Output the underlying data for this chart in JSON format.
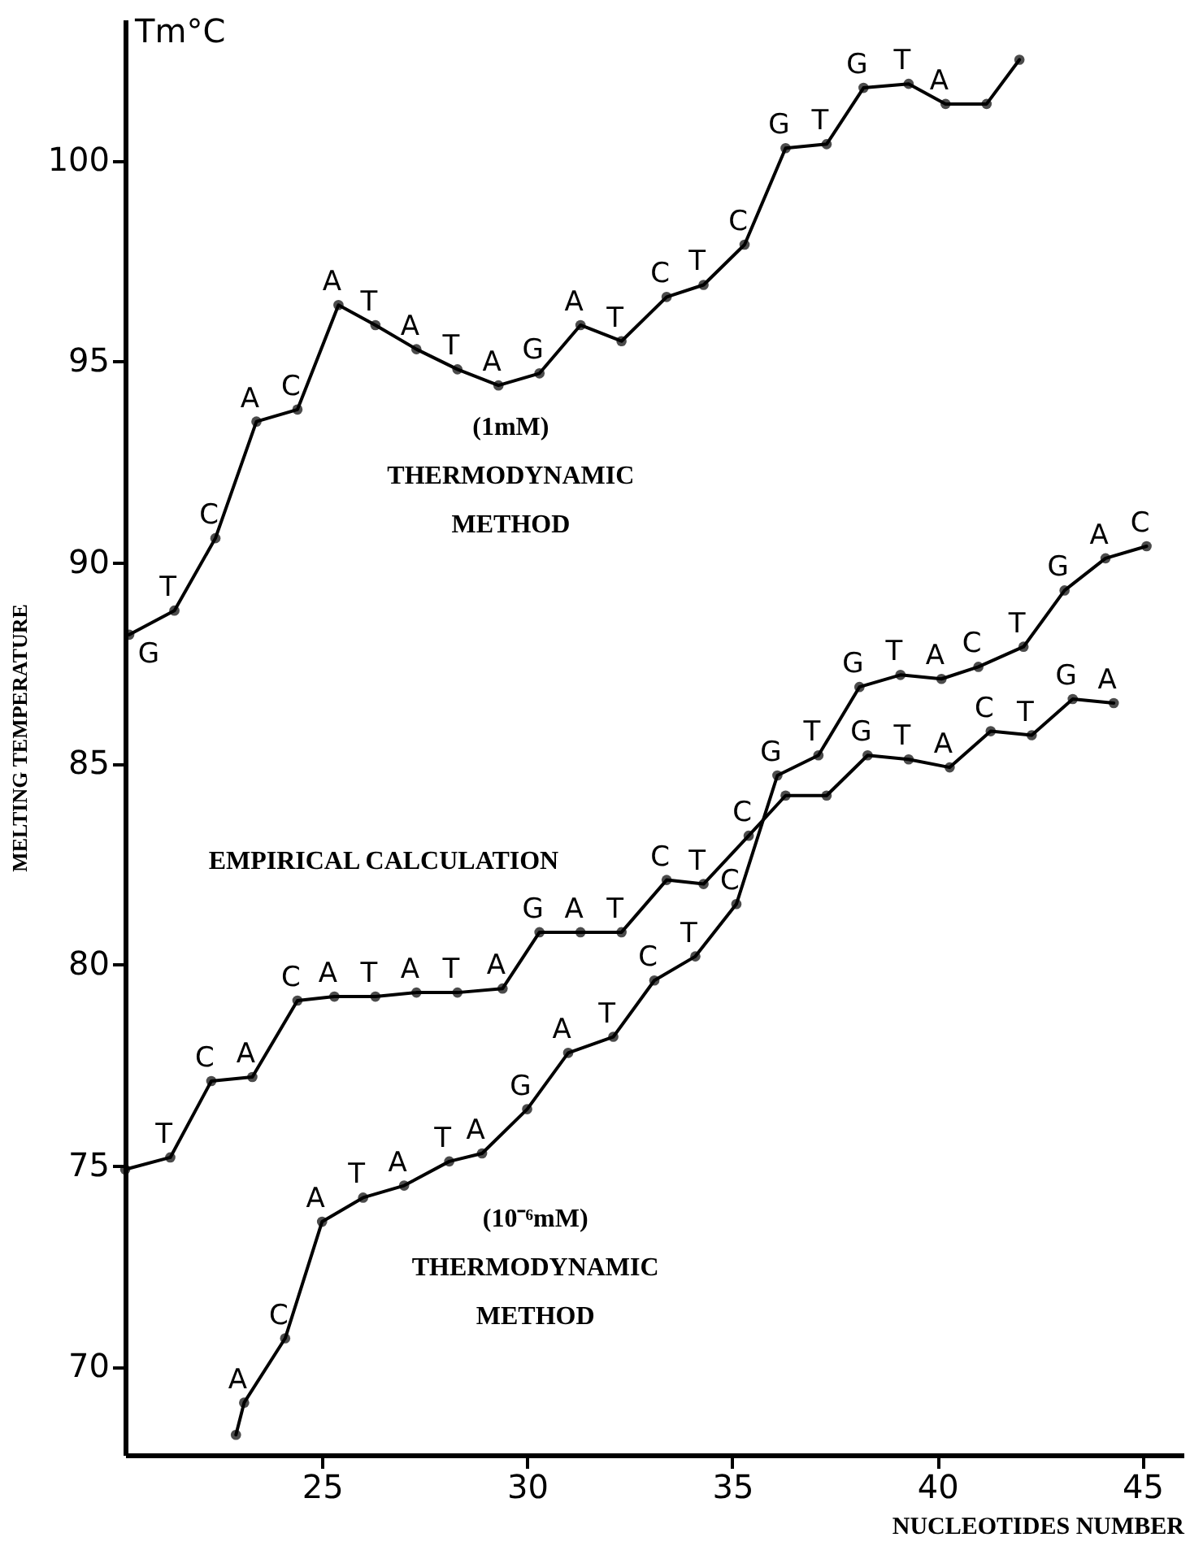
{
  "chart_data": {
    "type": "line",
    "xlabel": "NUCLEOTIDES NUMBER",
    "ylabel": "MELTING TEMPERATURE",
    "annotations": [
      "Tm°C"
    ],
    "xlim": [
      20.2,
      46
    ],
    "ylim": [
      67.8,
      103.5
    ],
    "xticks": [
      25,
      30,
      35,
      40,
      45
    ],
    "yticks": [
      70,
      75,
      80,
      85,
      90,
      95,
      100
    ],
    "grid": false,
    "marker": "circle",
    "line_style": "solid",
    "series": [
      {
        "name": "(1mM)\nTHERMODYNAMIC\nMETHOD",
        "color": "#000000",
        "x": [
          20.3,
          21.4,
          22.4,
          23.4,
          24.4,
          25.4,
          26.3,
          27.3,
          28.3,
          29.3,
          30.3,
          31.3,
          32.3,
          33.4,
          34.3,
          35.3,
          36.3,
          37.3,
          38.2,
          39.3,
          40.2,
          41.2,
          42.0
        ],
        "values": [
          88.2,
          88.8,
          90.6,
          93.5,
          93.8,
          96.4,
          95.9,
          95.3,
          94.8,
          94.4,
          94.7,
          95.9,
          95.5,
          96.6,
          96.9,
          97.9,
          100.3,
          100.4,
          101.8,
          101.9,
          101.4,
          101.4,
          102.5
        ],
        "value_labels": [
          "G",
          "T",
          "C",
          "A",
          "C",
          "A",
          "T",
          "A",
          "T",
          "A",
          "G",
          "A",
          "T",
          "C",
          "T",
          "C",
          "G",
          "T",
          "G",
          "T",
          "A",
          null,
          null
        ]
      },
      {
        "name": "EMPIRICAL CALCULATION",
        "color": "#000000",
        "x": [
          20.2,
          21.3,
          22.3,
          23.3,
          24.4,
          25.3,
          26.3,
          27.3,
          28.3,
          29.4,
          30.3,
          31.3,
          32.3,
          33.4,
          34.3,
          35.4,
          36.3,
          37.3,
          38.3,
          39.3,
          40.3,
          41.3,
          42.3,
          43.3,
          44.3
        ],
        "values": [
          74.9,
          75.2,
          77.1,
          77.2,
          79.1,
          79.2,
          79.2,
          79.3,
          79.3,
          79.4,
          80.8,
          80.8,
          80.8,
          82.1,
          82.0,
          83.2,
          84.2,
          84.2,
          85.2,
          85.1,
          84.9,
          85.8,
          85.7,
          86.6,
          86.5
        ],
        "value_labels": [
          null,
          "T",
          "C",
          "A",
          "C",
          "A",
          "T",
          "A",
          "T",
          "A",
          "G",
          "A",
          "T",
          "C",
          "T",
          "C",
          null,
          null,
          "G",
          "T",
          "A",
          "C",
          "T",
          "G",
          "A"
        ]
      },
      {
        "name": "(10⁻⁶mM)\nTHERMODYNAMIC\nMETHOD",
        "color": "#000000",
        "x": [
          22.9,
          23.1,
          24.1,
          25.0,
          26.0,
          27.0,
          28.1,
          28.9,
          30.0,
          31.0,
          32.1,
          33.1,
          34.1,
          35.1,
          36.1,
          37.1,
          38.1,
          39.1,
          40.1,
          41.0,
          42.1,
          43.1,
          44.1,
          45.1
        ],
        "values": [
          68.3,
          69.1,
          70.7,
          73.6,
          74.2,
          74.5,
          75.1,
          75.3,
          76.4,
          77.8,
          78.2,
          79.6,
          80.2,
          81.5,
          84.7,
          85.2,
          86.9,
          87.2,
          87.1,
          87.4,
          87.9,
          89.3,
          90.1,
          90.4
        ],
        "value_labels": [
          null,
          "A",
          "C",
          "A",
          "T",
          "A",
          "T",
          "A",
          "G",
          "A",
          "T",
          "C",
          "T",
          "C",
          "G",
          "T",
          "G",
          "T",
          "A",
          "C",
          "T",
          "G",
          "A",
          "C"
        ]
      }
    ]
  }
}
